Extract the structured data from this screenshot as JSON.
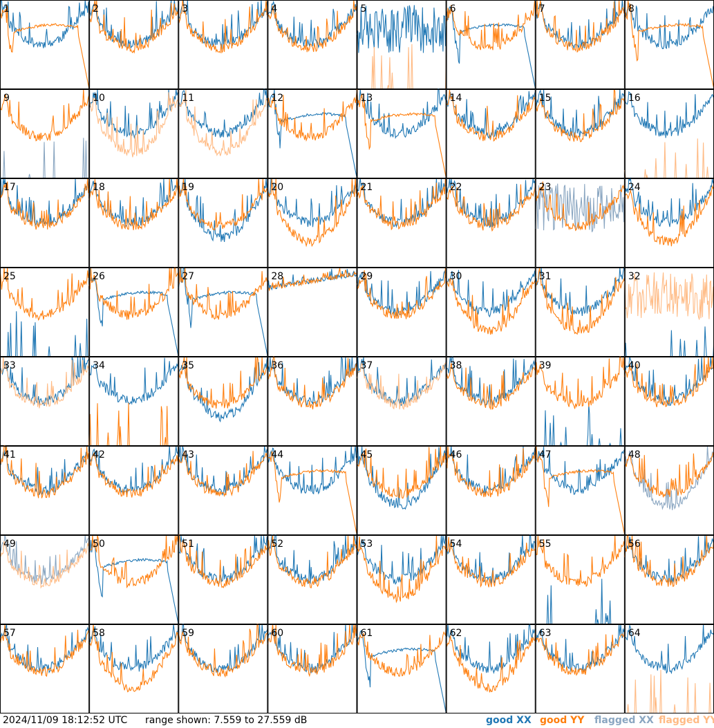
{
  "footer": {
    "timestamp": "2024/11/09 18:12:52 UTC",
    "range": "range shown: 7.559 to 27.559 dB"
  },
  "legend": [
    {
      "word": "good",
      "pol": "XX",
      "color": "#1f77b4"
    },
    {
      "word": "good",
      "pol": "YY",
      "color": "#ff7f0e"
    },
    {
      "word": "flagged",
      "pol": "XX",
      "color": "#8aa6c1"
    },
    {
      "word": "flagged",
      "pol": "YY",
      "color": "#ffbb85"
    }
  ],
  "colors": {
    "good_xx": "#1f77b4",
    "good_yy": "#ff7f0e",
    "flagged_xx": "#8aa6c1",
    "flagged_yy": "#ffbb85"
  },
  "chart_data": {
    "type": "line",
    "layout": "8x8 small multiples",
    "y_units": "dB",
    "ylim": [
      7.559,
      27.559
    ],
    "panel_labels": [
      "1",
      "2",
      "3",
      "4",
      "5",
      "6",
      "7",
      "8",
      "9",
      "10",
      "11",
      "12",
      "13",
      "14",
      "15",
      "16",
      "17",
      "18",
      "19",
      "20",
      "21",
      "22",
      "23",
      "24",
      "25",
      "26",
      "27",
      "28",
      "29",
      "30",
      "31",
      "32",
      "33",
      "34",
      "35",
      "36",
      "37",
      "38",
      "39",
      "40",
      "41",
      "42",
      "43",
      "44",
      "45",
      "46",
      "47",
      "48",
      "49",
      "50",
      "51",
      "52",
      "53",
      "54",
      "55",
      "56",
      "57",
      "58",
      "59",
      "60",
      "61",
      "62",
      "63",
      "64"
    ],
    "panels": [
      {
        "label": "1",
        "xx": "normal",
        "yy": "sag",
        "xx_flag": false,
        "yy_flag": false
      },
      {
        "label": "2",
        "xx": "normal",
        "yy": "normal",
        "xx_flag": false,
        "yy_flag": false
      },
      {
        "label": "3",
        "xx": "normal",
        "yy": "normal",
        "xx_flag": false,
        "yy_flag": false
      },
      {
        "label": "4",
        "xx": "normal",
        "yy": "normal",
        "xx_flag": false,
        "yy_flag": false
      },
      {
        "label": "5",
        "xx": "noisy",
        "yy": "spikes",
        "xx_flag": false,
        "yy_flag": true
      },
      {
        "label": "6",
        "xx": "sag",
        "yy": "normal",
        "xx_flag": false,
        "yy_flag": false
      },
      {
        "label": "7",
        "xx": "normal",
        "yy": "normal",
        "xx_flag": false,
        "yy_flag": false
      },
      {
        "label": "8",
        "xx": "normal",
        "yy": "sag",
        "xx_flag": false,
        "yy_flag": false
      },
      {
        "label": "9",
        "xx": "spikes",
        "yy": "normal",
        "xx_flag": true,
        "yy_flag": false
      },
      {
        "label": "10",
        "xx": "normal",
        "yy": "low",
        "xx_flag": false,
        "yy_flag": true
      },
      {
        "label": "11",
        "xx": "normal",
        "yy": "low",
        "xx_flag": false,
        "yy_flag": true
      },
      {
        "label": "12",
        "xx": "sag",
        "yy": "normal",
        "xx_flag": false,
        "yy_flag": false
      },
      {
        "label": "13",
        "xx": "normal",
        "yy": "sag",
        "xx_flag": false,
        "yy_flag": false
      },
      {
        "label": "14",
        "xx": "normal",
        "yy": "normal",
        "xx_flag": false,
        "yy_flag": false
      },
      {
        "label": "15",
        "xx": "normal",
        "yy": "normal",
        "xx_flag": false,
        "yy_flag": false
      },
      {
        "label": "16",
        "xx": "normal",
        "yy": "spikes",
        "xx_flag": false,
        "yy_flag": true
      },
      {
        "label": "17",
        "xx": "normal",
        "yy": "normal",
        "xx_flag": false,
        "yy_flag": false
      },
      {
        "label": "18",
        "xx": "normal",
        "yy": "normal",
        "xx_flag": false,
        "yy_flag": false
      },
      {
        "label": "19",
        "xx": "low",
        "yy": "normal",
        "xx_flag": false,
        "yy_flag": false
      },
      {
        "label": "20",
        "xx": "normal",
        "yy": "low",
        "xx_flag": false,
        "yy_flag": false
      },
      {
        "label": "21",
        "xx": "normal",
        "yy": "normal",
        "xx_flag": false,
        "yy_flag": false
      },
      {
        "label": "22",
        "xx": "normal",
        "yy": "normal",
        "xx_flag": false,
        "yy_flag": false
      },
      {
        "label": "23",
        "xx": "noisy",
        "yy": "normal",
        "xx_flag": true,
        "yy_flag": false
      },
      {
        "label": "24",
        "xx": "normal",
        "yy": "low",
        "xx_flag": false,
        "yy_flag": false
      },
      {
        "label": "25",
        "xx": "spikes",
        "yy": "normal",
        "xx_flag": false,
        "yy_flag": false
      },
      {
        "label": "26",
        "xx": "sag",
        "yy": "normal",
        "xx_flag": false,
        "yy_flag": false
      },
      {
        "label": "27",
        "xx": "sag",
        "yy": "normal",
        "xx_flag": false,
        "yy_flag": false
      },
      {
        "label": "28",
        "xx": "rising",
        "yy": "rising",
        "xx_flag": false,
        "yy_flag": false
      },
      {
        "label": "29",
        "xx": "normal",
        "yy": "normal",
        "xx_flag": false,
        "yy_flag": false
      },
      {
        "label": "30",
        "xx": "normal",
        "yy": "low",
        "xx_flag": false,
        "yy_flag": false
      },
      {
        "label": "31",
        "xx": "normal",
        "yy": "low",
        "xx_flag": false,
        "yy_flag": false
      },
      {
        "label": "32",
        "xx": "spikes",
        "yy": "noisy",
        "xx_flag": false,
        "yy_flag": true
      },
      {
        "label": "33",
        "xx": "normal",
        "yy": "normal",
        "xx_flag": false,
        "yy_flag": true
      },
      {
        "label": "34",
        "xx": "normal",
        "yy": "spikes",
        "xx_flag": false,
        "yy_flag": false
      },
      {
        "label": "35",
        "xx": "low",
        "yy": "normal",
        "xx_flag": false,
        "yy_flag": false
      },
      {
        "label": "36",
        "xx": "normal",
        "yy": "normal",
        "xx_flag": false,
        "yy_flag": false
      },
      {
        "label": "37",
        "xx": "normal",
        "yy": "normal",
        "xx_flag": false,
        "yy_flag": true
      },
      {
        "label": "38",
        "xx": "normal",
        "yy": "normal",
        "xx_flag": false,
        "yy_flag": false
      },
      {
        "label": "39",
        "xx": "spikes",
        "yy": "normal",
        "xx_flag": false,
        "yy_flag": false
      },
      {
        "label": "40",
        "xx": "normal",
        "yy": "normal",
        "xx_flag": false,
        "yy_flag": false
      },
      {
        "label": "41",
        "xx": "normal",
        "yy": "normal",
        "xx_flag": false,
        "yy_flag": false
      },
      {
        "label": "42",
        "xx": "normal",
        "yy": "normal",
        "xx_flag": false,
        "yy_flag": false
      },
      {
        "label": "43",
        "xx": "normal",
        "yy": "normal",
        "xx_flag": false,
        "yy_flag": false
      },
      {
        "label": "44",
        "xx": "normal",
        "yy": "sag",
        "xx_flag": false,
        "yy_flag": false
      },
      {
        "label": "45",
        "xx": "low",
        "yy": "normal",
        "xx_flag": false,
        "yy_flag": false
      },
      {
        "label": "46",
        "xx": "normal",
        "yy": "normal",
        "xx_flag": false,
        "yy_flag": false
      },
      {
        "label": "47",
        "xx": "normal",
        "yy": "sag",
        "xx_flag": false,
        "yy_flag": false
      },
      {
        "label": "48",
        "xx": "low",
        "yy": "normal",
        "xx_flag": true,
        "yy_flag": false
      },
      {
        "label": "49",
        "xx": "normal",
        "yy": "normal",
        "xx_flag": true,
        "yy_flag": true
      },
      {
        "label": "50",
        "xx": "sag",
        "yy": "normal",
        "xx_flag": false,
        "yy_flag": false
      },
      {
        "label": "51",
        "xx": "normal",
        "yy": "normal",
        "xx_flag": false,
        "yy_flag": false
      },
      {
        "label": "52",
        "xx": "normal",
        "yy": "normal",
        "xx_flag": false,
        "yy_flag": false
      },
      {
        "label": "53",
        "xx": "normal",
        "yy": "low",
        "xx_flag": false,
        "yy_flag": false
      },
      {
        "label": "54",
        "xx": "normal",
        "yy": "normal",
        "xx_flag": false,
        "yy_flag": false
      },
      {
        "label": "55",
        "xx": "spikes",
        "yy": "normal",
        "xx_flag": false,
        "yy_flag": false
      },
      {
        "label": "56",
        "xx": "normal",
        "yy": "normal",
        "xx_flag": false,
        "yy_flag": false
      },
      {
        "label": "57",
        "xx": "normal",
        "yy": "normal",
        "xx_flag": false,
        "yy_flag": false
      },
      {
        "label": "58",
        "xx": "normal",
        "yy": "low",
        "xx_flag": false,
        "yy_flag": false
      },
      {
        "label": "59",
        "xx": "normal",
        "yy": "normal",
        "xx_flag": false,
        "yy_flag": false
      },
      {
        "label": "60",
        "xx": "normal",
        "yy": "normal",
        "xx_flag": false,
        "yy_flag": false
      },
      {
        "label": "61",
        "xx": "sag",
        "yy": "normal",
        "xx_flag": false,
        "yy_flag": false
      },
      {
        "label": "62",
        "xx": "normal",
        "yy": "low",
        "xx_flag": false,
        "yy_flag": false
      },
      {
        "label": "63",
        "xx": "normal",
        "yy": "normal",
        "xx_flag": false,
        "yy_flag": false
      },
      {
        "label": "64",
        "xx": "normal",
        "yy": "spikes",
        "xx_flag": false,
        "yy_flag": true
      }
    ]
  }
}
